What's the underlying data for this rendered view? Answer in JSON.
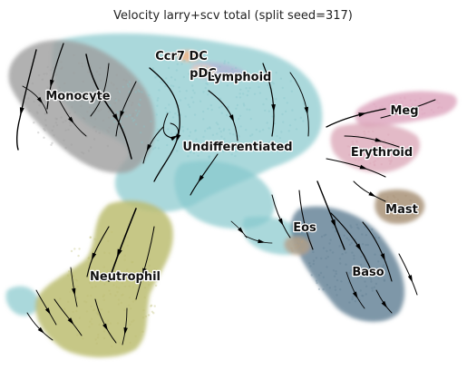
{
  "chart_data": {
    "type": "scatter",
    "title": "Velocity larry+scv total (split seed=317)",
    "xlabel": "",
    "ylabel": "",
    "grid": false,
    "axes_visible": false,
    "overlay": "velocity-streamlines",
    "clusters": [
      {
        "name": "Ccr7 DC",
        "color": "#f5b78b"
      },
      {
        "name": "pDC",
        "color": "#f4d6bc"
      },
      {
        "name": "Lymphoid",
        "color": "#b3b7d6"
      },
      {
        "name": "Monocyte",
        "color": "#9e9e9e"
      },
      {
        "name": "Meg",
        "color": "#dca3bc"
      },
      {
        "name": "Undifferentiated",
        "color": "#86c7cc"
      },
      {
        "name": "Erythroid",
        "color": "#d9a3b4"
      },
      {
        "name": "Mast",
        "color": "#a89277"
      },
      {
        "name": "Eos",
        "color": "#b5a088"
      },
      {
        "name": "Baso",
        "color": "#5e7d92"
      },
      {
        "name": "Neutrophil",
        "color": "#bcbd72"
      }
    ]
  }
}
